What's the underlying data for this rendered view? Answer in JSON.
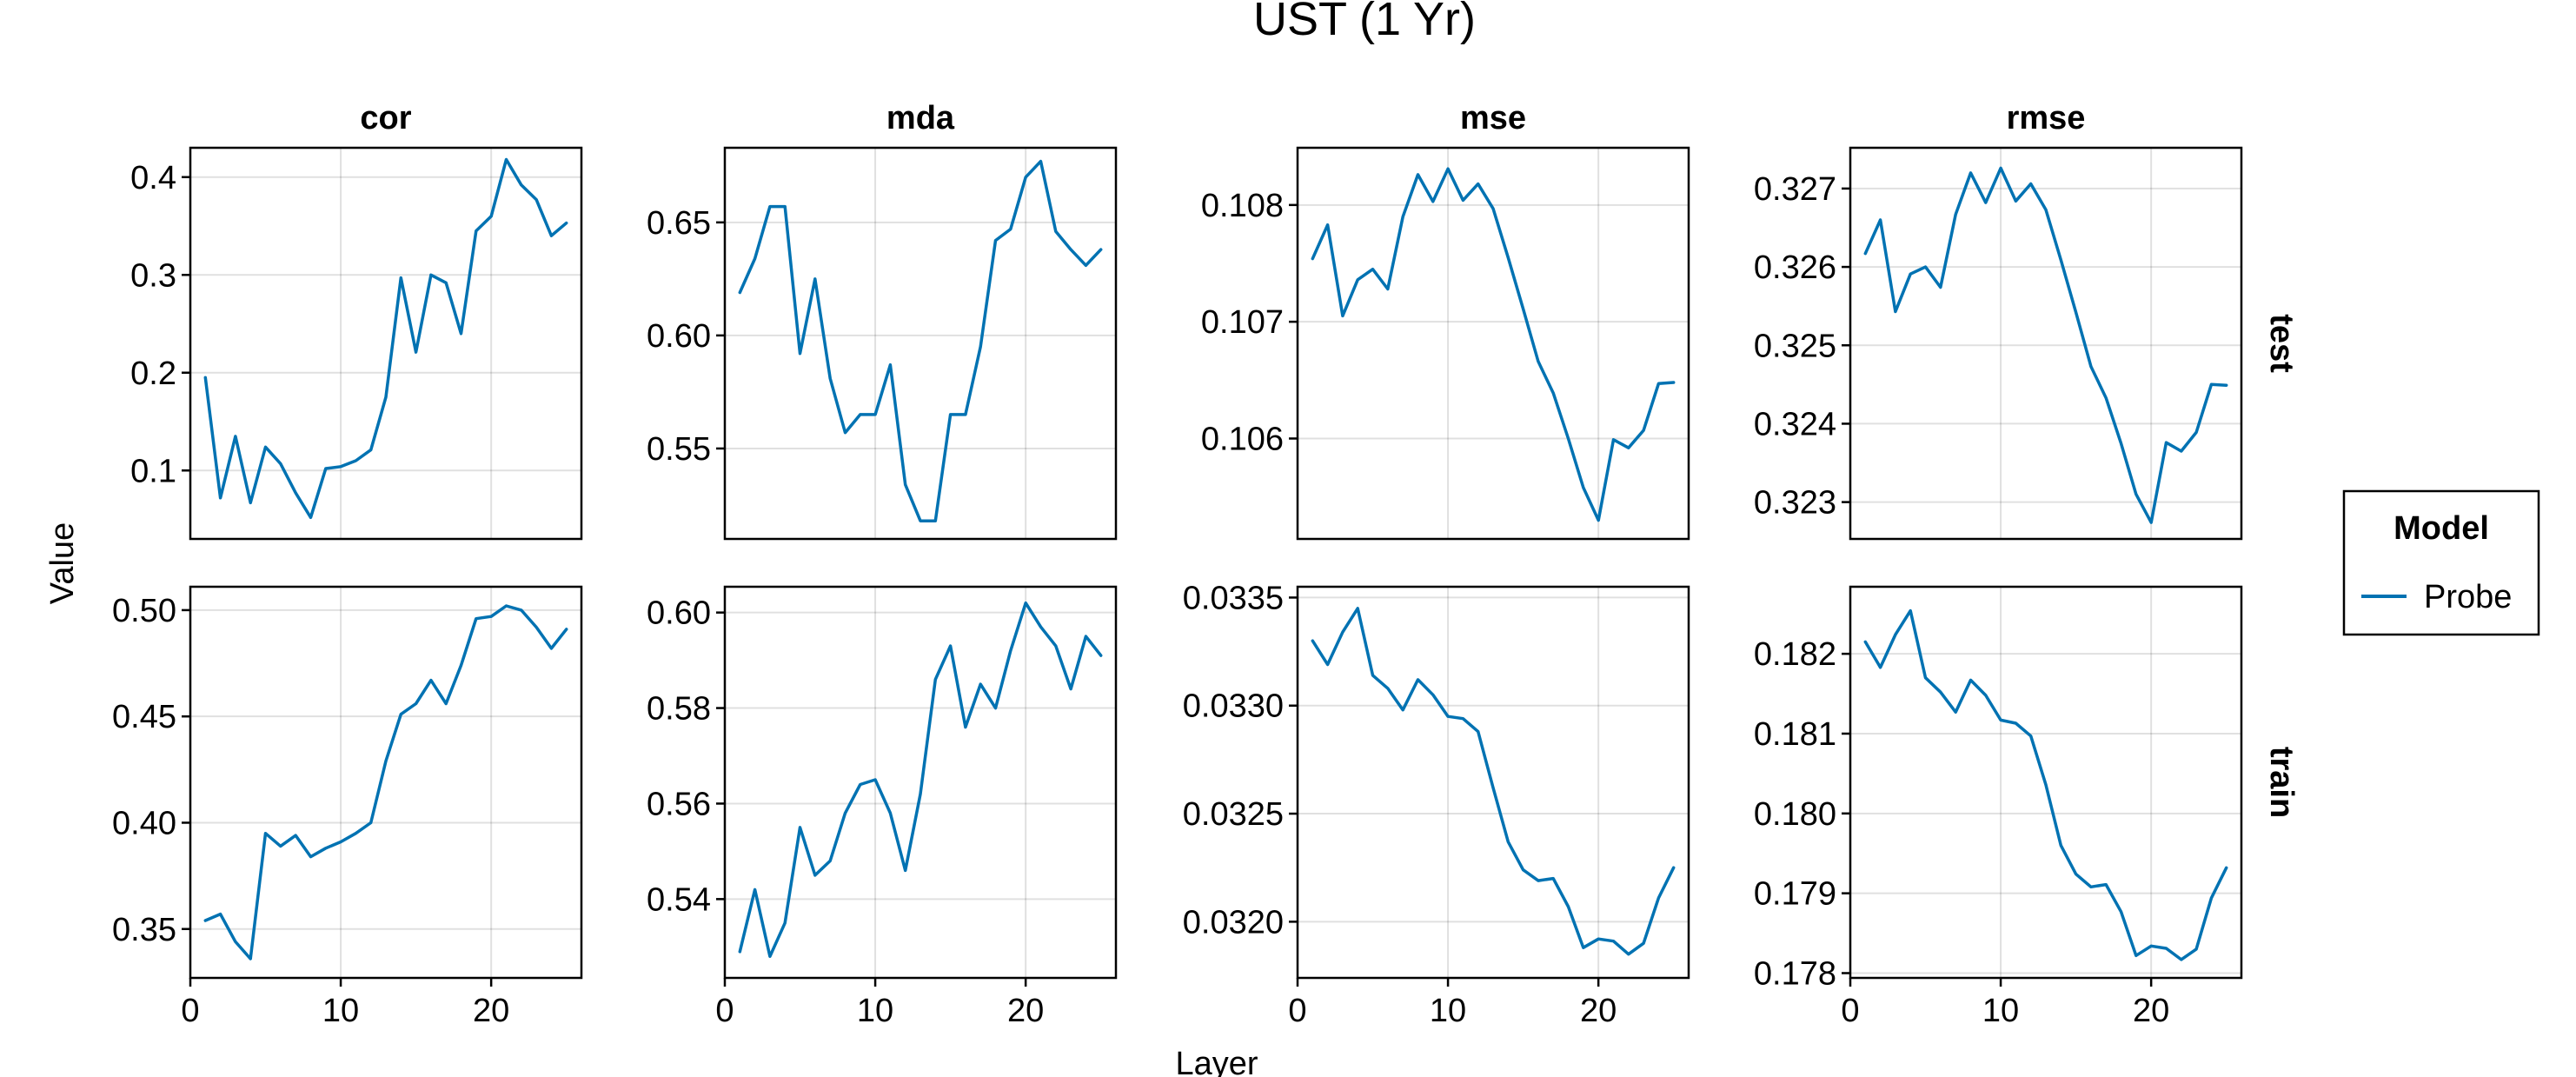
{
  "chart_data": {
    "type": "line",
    "title": "UST (1 Yr)",
    "xlabel": "Layer",
    "ylabel": "Value",
    "columns": [
      "cor",
      "mda",
      "mse",
      "rmse"
    ],
    "rows": [
      "test",
      "train"
    ],
    "legend": {
      "title": "Model",
      "placement": "right",
      "entries": [
        {
          "name": "Probe",
          "color": "#0072b2"
        }
      ]
    },
    "x": [
      1,
      2,
      3,
      4,
      5,
      6,
      7,
      8,
      9,
      10,
      11,
      12,
      13,
      14,
      15,
      16,
      17,
      18,
      19,
      20,
      21,
      22,
      23,
      24,
      25
    ],
    "xlim": [
      0,
      26
    ],
    "xticks": [
      0,
      10,
      20
    ],
    "grid": true,
    "panels": [
      {
        "column": "cor",
        "row": "test",
        "ylim": [
          0.03,
          0.43
        ],
        "yticks": [
          {
            "v": 0.1,
            "label": "0.1"
          },
          {
            "v": 0.2,
            "label": "0.2"
          },
          {
            "v": 0.3,
            "label": "0.3"
          },
          {
            "v": 0.4,
            "label": "0.4"
          }
        ],
        "values": [
          0.195,
          0.072,
          0.135,
          0.067,
          0.124,
          0.107,
          0.077,
          0.052,
          0.102,
          0.104,
          0.11,
          0.121,
          0.175,
          0.297,
          0.221,
          0.3,
          0.292,
          0.24,
          0.345,
          0.36,
          0.418,
          0.392,
          0.377,
          0.34,
          0.353
        ]
      },
      {
        "column": "mda",
        "row": "test",
        "ylim": [
          0.51,
          0.683
        ],
        "yticks": [
          {
            "v": 0.55,
            "label": "0.55"
          },
          {
            "v": 0.6,
            "label": "0.60"
          },
          {
            "v": 0.65,
            "label": "0.65"
          }
        ],
        "values": [
          0.619,
          0.634,
          0.657,
          0.657,
          0.592,
          0.625,
          0.581,
          0.557,
          0.565,
          0.565,
          0.587,
          0.534,
          0.518,
          0.518,
          0.565,
          0.565,
          0.595,
          0.642,
          0.647,
          0.67,
          0.677,
          0.646,
          0.638,
          0.631,
          0.638
        ]
      },
      {
        "column": "mse",
        "row": "test",
        "ylim": [
          0.10514,
          0.10849
        ],
        "yticks": [
          {
            "v": 0.106,
            "label": "0.106"
          },
          {
            "v": 0.107,
            "label": "0.107"
          },
          {
            "v": 0.108,
            "label": "0.108"
          }
        ],
        "values": [
          0.10754,
          0.10783,
          0.10705,
          0.10736,
          0.10745,
          0.10728,
          0.1079,
          0.10826,
          0.10803,
          0.10831,
          0.10804,
          0.10818,
          0.10797,
          0.10755,
          0.10711,
          0.10666,
          0.10639,
          0.106,
          0.10558,
          0.1053,
          0.10599,
          0.10592,
          0.10607,
          0.10647,
          0.10648
        ]
      },
      {
        "column": "rmse",
        "row": "test",
        "ylim": [
          0.32253,
          0.32752
        ],
        "yticks": [
          {
            "v": 0.323,
            "label": "0.323"
          },
          {
            "v": 0.324,
            "label": "0.324"
          },
          {
            "v": 0.325,
            "label": "0.325"
          },
          {
            "v": 0.326,
            "label": "0.326"
          },
          {
            "v": 0.327,
            "label": "0.327"
          }
        ],
        "values": [
          0.32617,
          0.3266,
          0.32543,
          0.32591,
          0.326,
          0.32574,
          0.32667,
          0.3272,
          0.32682,
          0.32726,
          0.32684,
          0.32706,
          0.32673,
          0.32609,
          0.32542,
          0.32473,
          0.32433,
          0.32375,
          0.3231,
          0.32274,
          0.32376,
          0.32365,
          0.32389,
          0.3245,
          0.32449
        ]
      },
      {
        "column": "cor",
        "row": "train",
        "ylim": [
          0.327,
          0.511
        ],
        "yticks": [
          {
            "v": 0.35,
            "label": "0.35"
          },
          {
            "v": 0.4,
            "label": "0.40"
          },
          {
            "v": 0.45,
            "label": "0.45"
          },
          {
            "v": 0.5,
            "label": "0.50"
          }
        ],
        "values": [
          0.354,
          0.357,
          0.344,
          0.336,
          0.395,
          0.389,
          0.394,
          0.384,
          0.388,
          0.391,
          0.395,
          0.4,
          0.429,
          0.451,
          0.456,
          0.467,
          0.456,
          0.474,
          0.496,
          0.497,
          0.502,
          0.5,
          0.492,
          0.482,
          0.491
        ]
      },
      {
        "column": "mda",
        "row": "train",
        "ylim": [
          0.5235,
          0.6054
        ],
        "yticks": [
          {
            "v": 0.54,
            "label": "0.54"
          },
          {
            "v": 0.56,
            "label": "0.56"
          },
          {
            "v": 0.58,
            "label": "0.58"
          },
          {
            "v": 0.6,
            "label": "0.60"
          }
        ],
        "values": [
          0.529,
          0.542,
          0.528,
          0.535,
          0.555,
          0.545,
          0.548,
          0.558,
          0.564,
          0.565,
          0.558,
          0.546,
          0.562,
          0.586,
          0.593,
          0.576,
          0.585,
          0.58,
          0.592,
          0.602,
          0.597,
          0.593,
          0.584,
          0.595,
          0.591
        ]
      },
      {
        "column": "mse",
        "row": "train",
        "ylim": [
          0.03174,
          0.03355
        ],
        "yticks": [
          {
            "v": 0.032,
            "label": "0.0320"
          },
          {
            "v": 0.0325,
            "label": "0.0325"
          },
          {
            "v": 0.033,
            "label": "0.0330"
          },
          {
            "v": 0.0335,
            "label": "0.0335"
          }
        ],
        "values": [
          0.0333,
          0.03319,
          0.03334,
          0.03345,
          0.03314,
          0.03308,
          0.03298,
          0.03312,
          0.03305,
          0.03295,
          0.03294,
          0.03288,
          0.03262,
          0.03237,
          0.03224,
          0.03219,
          0.0322,
          0.03207,
          0.03188,
          0.03192,
          0.03191,
          0.03185,
          0.0319,
          0.03211,
          0.03225
        ]
      },
      {
        "column": "rmse",
        "row": "train",
        "ylim": [
          0.17794,
          0.18284
        ],
        "yticks": [
          {
            "v": 0.178,
            "label": "0.178"
          },
          {
            "v": 0.179,
            "label": "0.179"
          },
          {
            "v": 0.18,
            "label": "0.180"
          },
          {
            "v": 0.181,
            "label": "0.181"
          },
          {
            "v": 0.182,
            "label": "0.182"
          }
        ],
        "values": [
          0.18215,
          0.18183,
          0.18224,
          0.18254,
          0.1817,
          0.18152,
          0.18127,
          0.18167,
          0.18148,
          0.18117,
          0.18113,
          0.18097,
          0.18036,
          0.1796,
          0.17924,
          0.17908,
          0.17911,
          0.17877,
          0.17822,
          0.17834,
          0.17831,
          0.17817,
          0.1783,
          0.17894,
          0.17932
        ]
      }
    ]
  }
}
